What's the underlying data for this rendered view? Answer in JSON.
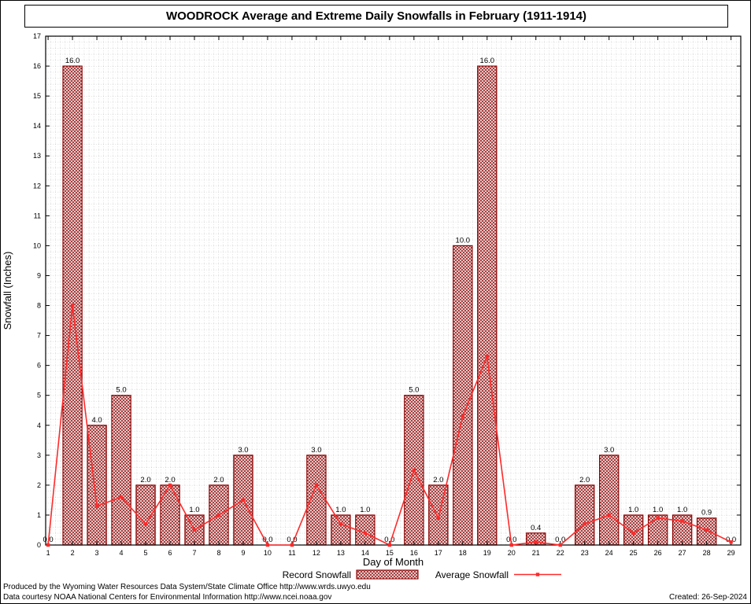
{
  "title": "WOODROCK Average and Extreme Daily Snowfalls in February (1911-1914)",
  "footer": {
    "line1": "Produced by the Wyoming Water Resources Data System/State Climate Office http://www.wrds.uwyo.edu",
    "line2": "Data courtesy NOAA National Centers for Environmental Information http://www.ncei.noaa.gov",
    "created": "Created: 26-Sep-2024"
  },
  "legend": {
    "record_label": "Record Snowfall",
    "average_label": "Average Snowfall"
  },
  "chart_data": {
    "type": "bar+line",
    "title": "WOODROCK Average and Extreme Daily Snowfalls in February (1911-1914)",
    "xlabel": "Day of Month",
    "ylabel": "Snowfall (Inches)",
    "xlim": [
      0.9,
      29.4
    ],
    "ylim": [
      0,
      17
    ],
    "ytick_step": 1,
    "grid": "fine-dotted-mesh",
    "legend_position": "bottom-center",
    "categories": [
      1,
      2,
      3,
      4,
      5,
      6,
      7,
      8,
      9,
      10,
      11,
      12,
      13,
      14,
      15,
      16,
      17,
      18,
      19,
      20,
      21,
      22,
      23,
      24,
      25,
      26,
      27,
      28,
      29
    ],
    "series": [
      {
        "name": "Record Snowfall",
        "type": "bar",
        "color": "#8b0000",
        "hatch_color": "#a03030",
        "values": [
          0.0,
          16.0,
          4.0,
          5.0,
          2.0,
          2.0,
          1.0,
          2.0,
          3.0,
          0.0,
          0.0,
          3.0,
          1.0,
          1.0,
          0.0,
          5.0,
          2.0,
          10.0,
          16.0,
          0.0,
          0.4,
          0.0,
          2.0,
          3.0,
          1.0,
          1.0,
          1.0,
          0.9,
          0.0
        ],
        "labels": [
          "0.0",
          "16.0",
          "4.0",
          "5.0",
          "2.0",
          "2.0",
          "1.0",
          "2.0",
          "3.0",
          "0.0",
          "0.0",
          "3.0",
          "1.0",
          "1.0",
          "0.0",
          "5.0",
          "2.0",
          "10.0",
          "16.0",
          "0.0",
          "0.4",
          "0.0",
          "2.0",
          "3.0",
          "1.0",
          "1.0",
          "1.0",
          "0.9",
          "0.0"
        ]
      },
      {
        "name": "Average Snowfall",
        "type": "line",
        "color": "#ff2a2a",
        "values": [
          0.0,
          8.0,
          1.3,
          1.6,
          0.7,
          2.0,
          0.5,
          1.0,
          1.5,
          0.0,
          0.0,
          2.0,
          0.7,
          0.4,
          0.0,
          2.5,
          0.9,
          4.3,
          6.3,
          0.0,
          0.1,
          0.0,
          0.7,
          1.0,
          0.4,
          0.9,
          0.8,
          0.5,
          0.1
        ]
      }
    ]
  }
}
